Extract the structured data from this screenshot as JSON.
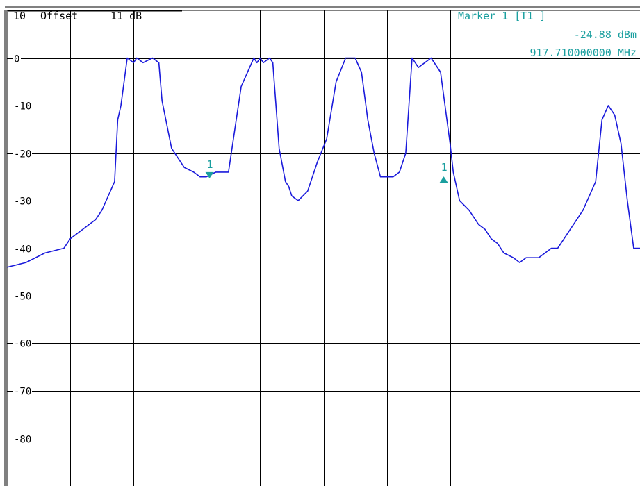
{
  "header": {
    "ref_level": "10",
    "offset_label": "Offset",
    "offset_value": "11 dB"
  },
  "marker_info": {
    "title": "Marker 1 [T1 ]",
    "level": "-24.88 dBm",
    "frequency": "917.710000000 MHz"
  },
  "colors": {
    "trace": "#1a1adb",
    "marker": "#1a9f9f",
    "grid": "#000000",
    "background": "#ffffff"
  },
  "chart_data": {
    "type": "line",
    "title": "",
    "xlabel": "",
    "ylabel": "",
    "ylim": [
      -90,
      10
    ],
    "yticks": [
      0,
      -10,
      -20,
      -30,
      -40,
      -50,
      -60,
      -70,
      -80
    ],
    "ytick_labels": [
      "0",
      "-10",
      "-20",
      "-30",
      "-40",
      "-50",
      "-60",
      "-70",
      "-80"
    ],
    "x_divisions": 10,
    "grid": true,
    "series": [
      {
        "color": "#1a1adb",
        "x": [
          0,
          0.3,
          0.6,
          0.9,
          1.0,
          1.2,
          1.4,
          1.5,
          1.6,
          1.7,
          1.75,
          1.8,
          1.9,
          2.0,
          2.05,
          2.15,
          2.3,
          2.4,
          2.45,
          2.6,
          2.8,
          2.95,
          3.05,
          3.15,
          3.3,
          3.5,
          3.7,
          3.9,
          3.95,
          4.0,
          4.05,
          4.15,
          4.2,
          4.3,
          4.4,
          4.45,
          4.5,
          4.6,
          4.75,
          4.9,
          5.05,
          5.2,
          5.35,
          5.5,
          5.6,
          5.7,
          5.8,
          5.9,
          6.0,
          6.1,
          6.2,
          6.3,
          6.4,
          6.5,
          6.7,
          6.85,
          7.0,
          7.05,
          7.15,
          7.3,
          7.45,
          7.55,
          7.65,
          7.75,
          7.85,
          8.0,
          8.1,
          8.2,
          8.3,
          8.4,
          8.5,
          8.6,
          8.7,
          8.8,
          8.9,
          9.0,
          9.1,
          9.2,
          9.3,
          9.4,
          9.5,
          9.6,
          9.7,
          9.8,
          9.9,
          10.0
        ],
        "y": [
          -44,
          -43,
          -41,
          -40,
          -38,
          -36,
          -34,
          -32,
          -29,
          -26,
          -13,
          -10,
          0,
          -1,
          0,
          -1,
          0,
          -1,
          -9,
          -19,
          -23,
          -24,
          -25,
          -25,
          -24,
          -24,
          -6,
          0,
          -1,
          0,
          -1,
          0,
          -1,
          -19,
          -26,
          -27,
          -29,
          -30,
          -28,
          -22,
          -17,
          -5,
          0,
          0,
          -3,
          -13,
          -20,
          -25,
          -25,
          -25,
          -24,
          -20,
          0,
          -2,
          0,
          -3,
          -18,
          -24,
          -30,
          -32,
          -35,
          -36,
          -38,
          -39,
          -41,
          -42,
          -43,
          -42,
          -42,
          -42,
          -41,
          -40,
          -40,
          -38,
          -36,
          -34,
          -32,
          -29,
          -26,
          -13,
          -10,
          -12,
          -18,
          -30,
          -40,
          -40
        ],
        "note": ""
      }
    ],
    "markers": [
      {
        "label": "1",
        "x": 3.2,
        "y": -24.88,
        "direction": "down"
      },
      {
        "label": "1",
        "x": 6.9,
        "y": -25.5,
        "direction": "up"
      }
    ]
  }
}
